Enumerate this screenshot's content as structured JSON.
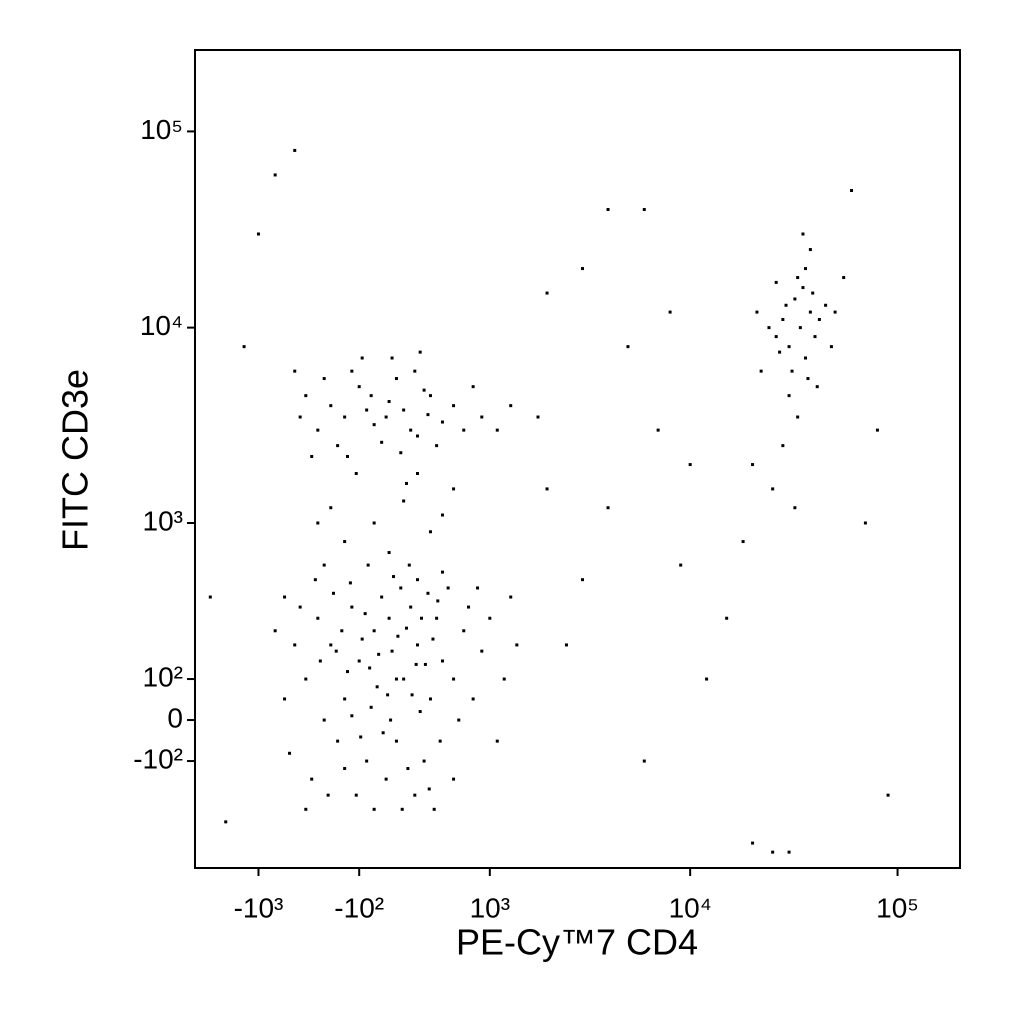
{
  "chart_data": {
    "type": "scatter",
    "xlabel": "PE-Cy™7 CD4",
    "ylabel": "FITC CD3e",
    "xscale": "biexponential",
    "yscale": "biexponential",
    "color": "#000000",
    "xlim": [
      -2150,
      200000
    ],
    "ylim": [
      -550,
      260000
    ],
    "xticks": [
      {
        "value": -1000,
        "label": "-10³"
      },
      {
        "value": -100,
        "label": "-10²"
      },
      {
        "value": 1000,
        "label": "10³"
      },
      {
        "value": 10000,
        "label": "10⁴"
      },
      {
        "value": 100000,
        "label": "10⁵"
      }
    ],
    "yticks": [
      {
        "value": 100000,
        "label": "10⁵"
      },
      {
        "value": 10000,
        "label": "10⁴"
      },
      {
        "value": 1000,
        "label": "10³"
      },
      {
        "value": 100,
        "label": "10²"
      },
      0,
      {
        "value": -100,
        "label": "-10²"
      }
    ],
    "x": [
      -500,
      -300,
      -200,
      -100,
      0,
      100,
      200,
      300,
      400,
      500,
      -400,
      -250,
      -150,
      -50,
      50,
      150,
      250,
      350,
      450,
      600,
      -600,
      -350,
      -180,
      -80,
      20,
      120,
      220,
      320,
      420,
      700,
      -450,
      -280,
      -120,
      -20,
      80,
      180,
      280,
      380,
      480,
      800,
      -700,
      -380,
      -220,
      -60,
      60,
      160,
      260,
      360,
      460,
      900,
      -550,
      -320,
      -160,
      -30,
      90,
      190,
      290,
      390,
      550,
      1000,
      -650,
      -420,
      -260,
      -90,
      30,
      130,
      230,
      330,
      430,
      1200,
      -800,
      -150,
      0,
      150,
      300,
      600,
      750,
      1100,
      1400,
      -500,
      -350,
      -200,
      -40,
      110,
      240,
      500,
      650,
      850,
      1300,
      -700,
      -400,
      -300,
      -200,
      -100,
      0,
      100,
      200,
      300,
      400,
      500,
      -500,
      -250,
      -150,
      -50,
      50,
      150,
      250,
      350,
      450,
      600,
      -550,
      -350,
      -180,
      -20,
      80,
      180,
      280,
      380,
      700,
      900,
      -450,
      -80,
      120,
      320,
      800,
      1100,
      1300,
      -600,
      -120,
      220,
      -300,
      0,
      200,
      400,
      600,
      -200,
      100,
      500,
      -400,
      300,
      34000,
      30000,
      38000,
      28000,
      36000,
      32000,
      40000,
      26000,
      35000,
      31000,
      42000,
      29000,
      37000,
      33000,
      27000,
      45000,
      24000,
      39000,
      30000,
      36000,
      50000,
      22000,
      33000,
      28000,
      25000,
      20000,
      38000,
      48000,
      32000,
      18000,
      55000,
      21000,
      41000,
      26000,
      35000,
      4000,
      6000,
      3000,
      2000,
      8000,
      5000,
      7000,
      10000,
      15000,
      3000,
      2500,
      6000,
      12000,
      20000,
      25000,
      30000,
      90000,
      60000,
      80000,
      70000,
      -1500,
      -1200,
      -1000,
      -800,
      -600,
      2000,
      4000,
      9000,
      1800,
      -1800
    ],
    "values": [
      100,
      200,
      50,
      150,
      250,
      300,
      100,
      200,
      50,
      150,
      300,
      -50,
      350,
      -100,
      400,
      -50,
      350,
      -100,
      300,
      100,
      200,
      0,
      120,
      220,
      80,
      180,
      260,
      20,
      220,
      250,
      -150,
      420,
      -200,
      30,
      -150,
      450,
      -200,
      420,
      -50,
      50,
      50,
      150,
      250,
      320,
      -30,
      230,
      60,
      140,
      380,
      180,
      350,
      -200,
      480,
      130,
      60,
      -250,
      140,
      -180,
      450,
      300,
      -80,
      500,
      180,
      -40,
      170,
      520,
      -120,
      300,
      -250,
      100,
      250,
      10,
      -250,
      100,
      500,
      -150,
      350,
      -50,
      200,
      -250,
      600,
      -120,
      600,
      0,
      600,
      550,
      0,
      450,
      400,
      400,
      3000,
      4000,
      3500,
      5000,
      3200,
      4200,
      3800,
      2800,
      4500,
      3300,
      4500,
      2500,
      6000,
      3800,
      2600,
      5500,
      3000,
      4800,
      2500,
      4000,
      3500,
      5500,
      2200,
      4500,
      3500,
      2300,
      6000,
      3600,
      3000,
      3500,
      2200,
      7000,
      7000,
      7500,
      5000,
      3000,
      4000,
      6000,
      1800,
      1600,
      1200,
      1000,
      1300,
      900,
      1500,
      800,
      700,
      1100,
      1000,
      1800,
      10000,
      8000,
      12000,
      11000,
      7000,
      14000,
      9000,
      9000,
      16000,
      6000,
      11000,
      13000,
      5500,
      18000,
      7500,
      13000,
      10000,
      15000,
      4500,
      20000,
      12000,
      6000,
      3500,
      2500,
      1500,
      2000,
      25000,
      8000,
      1200,
      800,
      18000,
      12000,
      5000,
      17000,
      30000,
      40000,
      40000,
      20000,
      15000,
      12000,
      8000,
      3000,
      2000,
      300,
      500,
      200,
      -100,
      100,
      -400,
      -450,
      -450,
      -200,
      50000,
      3000,
      1000,
      -300,
      8000,
      30000,
      60000,
      80000,
      1500,
      1200,
      600,
      3500,
      400
    ]
  }
}
